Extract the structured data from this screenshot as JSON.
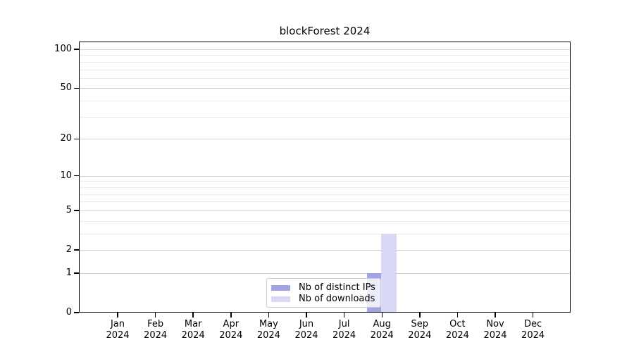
{
  "title": "blockForest 2024",
  "chart_data": {
    "type": "bar",
    "title": "blockForest 2024",
    "categories": [
      "Jan",
      "Feb",
      "Mar",
      "Apr",
      "May",
      "Jun",
      "Jul",
      "Aug",
      "Sep",
      "Oct",
      "Nov",
      "Dec"
    ],
    "year": "2024",
    "series": [
      {
        "name": "Nb of distinct IPs",
        "color": "#a2a2e6",
        "values": [
          0,
          0,
          0,
          0,
          0,
          0,
          0,
          1,
          0,
          0,
          0,
          0
        ]
      },
      {
        "name": "Nb of downloads",
        "color": "#d9d9f5",
        "values": [
          0,
          0,
          0,
          0,
          0,
          0,
          0,
          3,
          0,
          0,
          0,
          0
        ]
      }
    ],
    "xlabel": "",
    "ylabel": "",
    "y_axis": {
      "scale": "log1p",
      "ticks": [
        0,
        1,
        2,
        5,
        10,
        20,
        50,
        100
      ],
      "minor_gridlines": [
        3,
        4,
        6,
        7,
        8,
        9,
        30,
        40,
        60,
        70,
        80,
        90
      ],
      "ylim": [
        0,
        115
      ]
    },
    "grid": "on",
    "legend_position": "bottom-center"
  },
  "colors": {
    "bar_distinct_ips": "#a2a2e6",
    "bar_downloads": "#d9d9f5",
    "grid_major": "#d2d2d2",
    "grid_minor": "#ebebeb",
    "axis": "#000000",
    "legend_border": "#cccccc",
    "background": "#ffffff"
  }
}
